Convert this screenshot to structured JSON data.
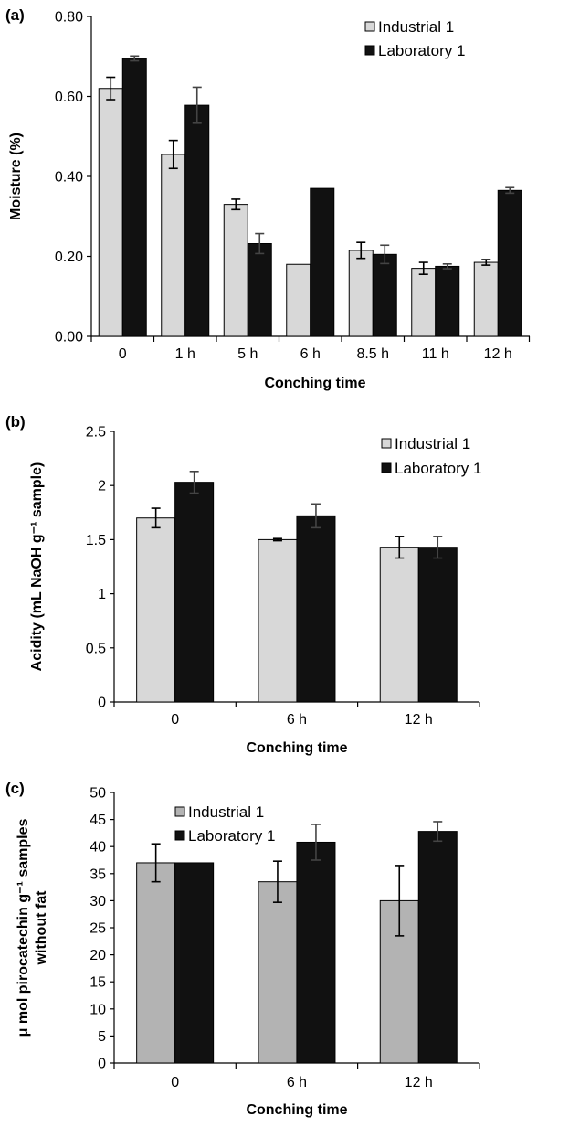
{
  "colors": {
    "industrial": "#d8d8d8",
    "industrial_c": "#b3b3b3",
    "laboratory": "#111111"
  },
  "chart_data": [
    {
      "panel": "(a)",
      "type": "bar",
      "categories": [
        "0",
        "1 h",
        "5 h",
        "6 h",
        "8.5 h",
        "11 h",
        "12 h"
      ],
      "series": [
        {
          "name": "Industrial 1",
          "values": [
            0.62,
            0.455,
            0.33,
            0.18,
            0.215,
            0.17,
            0.185
          ],
          "errors": [
            0.028,
            0.035,
            0.013,
            0.0,
            0.02,
            0.015,
            0.007
          ]
        },
        {
          "name": "Laboratory 1",
          "values": [
            0.695,
            0.578,
            0.232,
            0.37,
            0.205,
            0.175,
            0.365
          ],
          "errors": [
            0.006,
            0.045,
            0.025,
            0.0,
            0.023,
            0.006,
            0.007
          ]
        }
      ],
      "xlabel": "Conching time",
      "ylabel": "Moisture (%)",
      "ylim": [
        0,
        0.8
      ],
      "yticks": [
        "0.00",
        "0.20",
        "0.40",
        "0.60",
        "0.80"
      ],
      "legend": "top-right"
    },
    {
      "panel": "(b)",
      "type": "bar",
      "categories": [
        "0",
        "6 h",
        "12 h"
      ],
      "series": [
        {
          "name": "Industrial 1",
          "values": [
            1.7,
            1.5,
            1.43
          ],
          "errors": [
            0.09,
            0.01,
            0.1
          ]
        },
        {
          "name": "Laboratory 1",
          "values": [
            2.03,
            1.72,
            1.43
          ],
          "errors": [
            0.1,
            0.11,
            0.1
          ]
        }
      ],
      "xlabel": "Conching time",
      "ylabel": "Acidity (mL NaOH g⁻¹ sample)",
      "ylim": [
        0,
        2.5
      ],
      "yticks": [
        "0",
        "0.5",
        "1",
        "1.5",
        "2",
        "2.5"
      ],
      "legend": "top-right"
    },
    {
      "panel": "(c)",
      "type": "bar",
      "categories": [
        "0",
        "6 h",
        "12 h"
      ],
      "series": [
        {
          "name": "Industrial 1",
          "values": [
            37,
            33.5,
            30
          ],
          "errors": [
            3.5,
            3.8,
            6.5
          ]
        },
        {
          "name": "Laboratory 1",
          "values": [
            37,
            40.8,
            42.8
          ],
          "errors": [
            0,
            3.3,
            1.8
          ]
        }
      ],
      "xlabel": "Conching time",
      "ylabel": [
        "μ mol pirocatechin g⁻¹ samples",
        "without fat"
      ],
      "ylim": [
        0,
        50
      ],
      "yticks": [
        "0",
        "5",
        "10",
        "15",
        "20",
        "25",
        "30",
        "35",
        "40",
        "45",
        "50"
      ],
      "legend": "top-left"
    }
  ]
}
